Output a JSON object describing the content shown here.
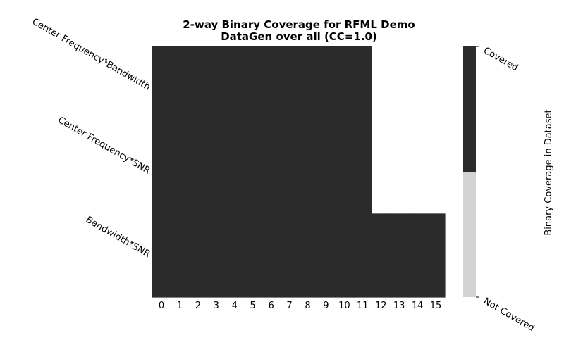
{
  "chart_data": {
    "type": "heatmap",
    "title": "2-way Binary Coverage for RFML Demo",
    "subtitle": "DataGen over all (CC=1.0)",
    "x_categories": [
      "0",
      "1",
      "2",
      "3",
      "4",
      "5",
      "6",
      "7",
      "8",
      "9",
      "10",
      "11",
      "12",
      "13",
      "14",
      "15"
    ],
    "y_categories": [
      "Center Frequency*Bandwidth",
      "Center Frequency*SNR",
      "Bandwidth*SNR"
    ],
    "values": [
      [
        1,
        1,
        1,
        1,
        1,
        1,
        1,
        1,
        1,
        1,
        1,
        1,
        null,
        null,
        null,
        null
      ],
      [
        1,
        1,
        1,
        1,
        1,
        1,
        1,
        1,
        1,
        1,
        1,
        1,
        null,
        null,
        null,
        null
      ],
      [
        1,
        1,
        1,
        1,
        1,
        1,
        1,
        1,
        1,
        1,
        1,
        1,
        1,
        1,
        1,
        1
      ]
    ],
    "colorbar": {
      "label": "Binary Coverage in Dataset",
      "ticks": [
        "Covered",
        "Not Covered"
      ]
    },
    "colors": {
      "covered": "#2b2b2b",
      "not_covered": "#d3d3d3"
    }
  }
}
